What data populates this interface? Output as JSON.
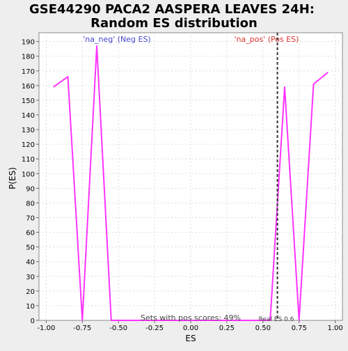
{
  "chart_data": {
    "type": "line",
    "title_line1": "GSE44290 PACA2 AASPERA LEAVES 24H:",
    "title_line2": "Random ES distribution",
    "xlabel": "ES",
    "ylabel": "P(ES)",
    "xlim": [
      -1.05,
      1.05
    ],
    "ylim": [
      0,
      196
    ],
    "x_ticks": [
      -1.0,
      -0.75,
      -0.5,
      -0.25,
      0.0,
      0.25,
      0.5,
      0.75,
      1.0
    ],
    "x_tick_labels": [
      "-1.00",
      "-0.75",
      "-0.50",
      "-0.25",
      "0.00",
      "0.25",
      "0.50",
      "0.75",
      "1.00"
    ],
    "y_ticks": [
      0,
      10,
      20,
      30,
      40,
      50,
      60,
      70,
      80,
      90,
      100,
      110,
      120,
      130,
      140,
      150,
      160,
      170,
      180,
      190
    ],
    "grid": true,
    "series": [
      {
        "color": "#ff33ff",
        "x": [
          -0.95,
          -0.85,
          -0.75,
          -0.65,
          -0.55,
          -0.45,
          -0.35,
          -0.25,
          -0.15,
          -0.05,
          0.05,
          0.15,
          0.25,
          0.35,
          0.45,
          0.55,
          0.65,
          0.75,
          0.85,
          0.95
        ],
        "y": [
          159,
          166,
          0,
          187,
          0,
          0,
          0,
          0,
          0,
          0,
          0,
          0,
          0,
          0,
          0,
          0,
          159,
          0,
          161,
          169
        ]
      }
    ],
    "real_es_line": {
      "x": 0.6,
      "style": "dashed",
      "color": "#333333"
    },
    "annotations": {
      "neg_label": "'na_neg' (Neg ES)",
      "neg_color": "#4444cc",
      "pos_label": "'na_pos' (Pos ES)",
      "pos_color": "#dd3333",
      "sets_text": "Sets with pos scores: 49%",
      "real_es_text": "Real ES 0.6"
    }
  }
}
